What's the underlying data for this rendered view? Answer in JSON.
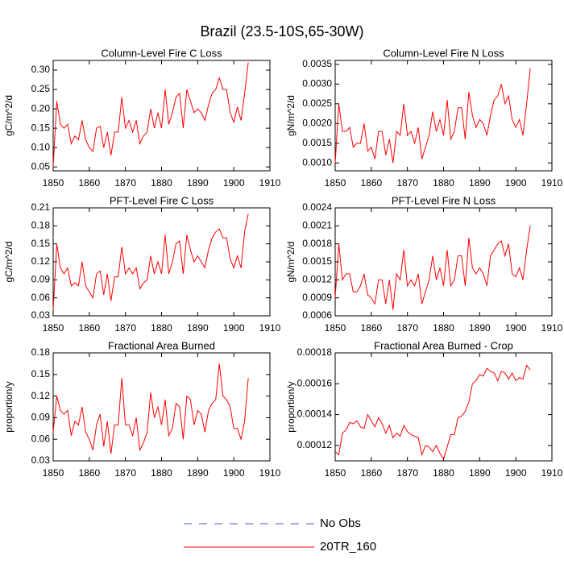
{
  "title": "Brazil (23.5-10S,65-30W)",
  "legend": [
    {
      "name": "No Obs",
      "color": "#4a5ad0",
      "dash": true
    },
    {
      "name": "20TR_160",
      "color": "#ff0000",
      "dash": false
    }
  ],
  "chart_data": [
    {
      "type": "line",
      "title": "Column-Level Fire C Loss",
      "ylabel": "gC/m^2/d",
      "x": [
        1850,
        1851,
        1852,
        1853,
        1854,
        1855,
        1856,
        1857,
        1858,
        1859,
        1860,
        1861,
        1862,
        1863,
        1864,
        1865,
        1866,
        1867,
        1868,
        1869,
        1870,
        1871,
        1872,
        1873,
        1874,
        1875,
        1876,
        1877,
        1878,
        1879,
        1880,
        1881,
        1882,
        1883,
        1884,
        1885,
        1886,
        1887,
        1888,
        1889,
        1890,
        1891,
        1892,
        1893,
        1894,
        1895,
        1896,
        1897,
        1898,
        1899,
        1900,
        1901,
        1902,
        1903,
        1904
      ],
      "series": [
        {
          "color": "#ff0000",
          "values": [
            0.05,
            0.22,
            0.16,
            0.15,
            0.16,
            0.11,
            0.13,
            0.12,
            0.17,
            0.12,
            0.1,
            0.09,
            0.15,
            0.155,
            0.1,
            0.14,
            0.08,
            0.14,
            0.14,
            0.23,
            0.15,
            0.17,
            0.14,
            0.17,
            0.11,
            0.13,
            0.14,
            0.2,
            0.15,
            0.19,
            0.15,
            0.25,
            0.16,
            0.19,
            0.23,
            0.24,
            0.15,
            0.25,
            0.22,
            0.19,
            0.2,
            0.19,
            0.17,
            0.21,
            0.24,
            0.25,
            0.28,
            0.25,
            0.25,
            0.19,
            0.165,
            0.205,
            0.17,
            0.24,
            0.32
          ]
        }
      ],
      "xlim": [
        1850,
        1910
      ],
      "xticks": [
        1850,
        1860,
        1870,
        1880,
        1890,
        1900,
        1910
      ],
      "ylim": [
        0.04,
        0.325
      ],
      "yticks": [
        0.05,
        {
          "value": 0.1,
          "label": "0.10"
        },
        0.15,
        {
          "value": 0.2,
          "label": "0.20"
        },
        0.25,
        {
          "value": 0.3,
          "label": "0.30"
        }
      ]
    },
    {
      "type": "line",
      "title": "Column-Level Fire N Loss",
      "ylabel": "gN/m^2/d",
      "x": [
        1850,
        1851,
        1852,
        1853,
        1854,
        1855,
        1856,
        1857,
        1858,
        1859,
        1860,
        1861,
        1862,
        1863,
        1864,
        1865,
        1866,
        1867,
        1868,
        1869,
        1870,
        1871,
        1872,
        1873,
        1874,
        1875,
        1876,
        1877,
        1878,
        1879,
        1880,
        1881,
        1882,
        1883,
        1884,
        1885,
        1886,
        1887,
        1888,
        1889,
        1890,
        1891,
        1892,
        1893,
        1894,
        1895,
        1896,
        1897,
        1898,
        1899,
        1900,
        1901,
        1902,
        1903,
        1904
      ],
      "series": [
        {
          "color": "#ff0000",
          "values": [
            0.001,
            0.0025,
            0.0018,
            0.0018,
            0.0019,
            0.0014,
            0.0015,
            0.0015,
            0.002,
            0.0013,
            0.0014,
            0.0011,
            0.0018,
            0.0018,
            0.0012,
            0.0016,
            0.001,
            0.0018,
            0.0017,
            0.0025,
            0.0017,
            0.0018,
            0.0015,
            0.0019,
            0.0011,
            0.0014,
            0.0017,
            0.0023,
            0.0018,
            0.0021,
            0.0017,
            0.0026,
            0.0016,
            0.0018,
            0.0024,
            0.0024,
            0.0016,
            0.0028,
            0.0022,
            0.0019,
            0.0021,
            0.002,
            0.0017,
            0.0022,
            0.0026,
            0.0027,
            0.003,
            0.0025,
            0.0027,
            0.0021,
            0.0019,
            0.0021,
            0.0017,
            0.0025,
            0.0034
          ]
        }
      ],
      "xlim": [
        1850,
        1910
      ],
      "xticks": [
        1850,
        1860,
        1870,
        1880,
        1890,
        1900,
        1910
      ],
      "ylim": [
        0.0008,
        0.0036
      ],
      "yticks": [
        {
          "value": 0.001,
          "label": "0.0010"
        },
        0.0015,
        {
          "value": 0.002,
          "label": "0.0020"
        },
        0.0025,
        {
          "value": 0.003,
          "label": "0.0030"
        },
        0.0035
      ]
    },
    {
      "type": "line",
      "title": "PFT-Level Fire C Loss",
      "ylabel": "gC/m^2/d",
      "x": [
        1850,
        1851,
        1852,
        1853,
        1854,
        1855,
        1856,
        1857,
        1858,
        1859,
        1860,
        1861,
        1862,
        1863,
        1864,
        1865,
        1866,
        1867,
        1868,
        1869,
        1870,
        1871,
        1872,
        1873,
        1874,
        1875,
        1876,
        1877,
        1878,
        1879,
        1880,
        1881,
        1882,
        1883,
        1884,
        1885,
        1886,
        1887,
        1888,
        1889,
        1890,
        1891,
        1892,
        1893,
        1894,
        1895,
        1896,
        1897,
        1898,
        1899,
        1900,
        1901,
        1902,
        1903,
        1904
      ],
      "series": [
        {
          "color": "#ff0000",
          "values": [
            0.04,
            0.15,
            0.11,
            0.1,
            0.11,
            0.08,
            0.085,
            0.08,
            0.12,
            0.08,
            0.07,
            0.06,
            0.1,
            0.105,
            0.065,
            0.1,
            0.055,
            0.095,
            0.095,
            0.145,
            0.1,
            0.11,
            0.1,
            0.11,
            0.075,
            0.085,
            0.09,
            0.13,
            0.1,
            0.12,
            0.1,
            0.165,
            0.1,
            0.12,
            0.15,
            0.155,
            0.1,
            0.165,
            0.14,
            0.12,
            0.13,
            0.12,
            0.11,
            0.14,
            0.16,
            0.17,
            0.175,
            0.16,
            0.16,
            0.125,
            0.11,
            0.13,
            0.11,
            0.17,
            0.2
          ]
        }
      ],
      "xlim": [
        1850,
        1910
      ],
      "xticks": [
        1850,
        1860,
        1870,
        1880,
        1890,
        1900,
        1910
      ],
      "ylim": [
        0.03,
        0.21
      ],
      "yticks": [
        0.03,
        0.06,
        0.09,
        0.12,
        0.15,
        0.18,
        0.21
      ]
    },
    {
      "type": "line",
      "title": "PFT-Level Fire N Loss",
      "ylabel": "gN/m^2/d",
      "x": [
        1850,
        1851,
        1852,
        1853,
        1854,
        1855,
        1856,
        1857,
        1858,
        1859,
        1860,
        1861,
        1862,
        1863,
        1864,
        1865,
        1866,
        1867,
        1868,
        1869,
        1870,
        1871,
        1872,
        1873,
        1874,
        1875,
        1876,
        1877,
        1878,
        1879,
        1880,
        1881,
        1882,
        1883,
        1884,
        1885,
        1886,
        1887,
        1888,
        1889,
        1890,
        1891,
        1892,
        1893,
        1894,
        1895,
        1896,
        1897,
        1898,
        1899,
        1900,
        1901,
        1902,
        1903,
        1904
      ],
      "series": [
        {
          "color": "#ff0000",
          "values": [
            0.0009,
            0.0018,
            0.0012,
            0.0013,
            0.0013,
            0.001,
            0.001,
            0.0011,
            0.0013,
            0.00095,
            0.0009,
            0.0008,
            0.0012,
            0.0012,
            0.0008,
            0.0012,
            0.0007,
            0.0013,
            0.0012,
            0.0017,
            0.0011,
            0.0012,
            0.0011,
            0.0013,
            0.0008,
            0.001,
            0.0012,
            0.0016,
            0.0012,
            0.0014,
            0.0011,
            0.0017,
            0.0011,
            0.0012,
            0.0016,
            0.0016,
            0.0011,
            0.0019,
            0.0014,
            0.0013,
            0.0014,
            0.0013,
            0.0011,
            0.0016,
            0.0017,
            0.0018,
            0.00185,
            0.0016,
            0.0018,
            0.0013,
            0.00125,
            0.0014,
            0.0012,
            0.0017,
            0.0021
          ]
        }
      ],
      "xlim": [
        1850,
        1910
      ],
      "xticks": [
        1850,
        1860,
        1870,
        1880,
        1890,
        1900,
        1910
      ],
      "ylim": [
        0.0006,
        0.0024
      ],
      "yticks": [
        0.0006,
        0.0009,
        0.0012,
        0.0015,
        0.0018,
        0.0021,
        0.0024
      ]
    },
    {
      "type": "line",
      "title": "Fractional Area Burned",
      "ylabel": "proportion/y",
      "x": [
        1850,
        1851,
        1852,
        1853,
        1854,
        1855,
        1856,
        1857,
        1858,
        1859,
        1860,
        1861,
        1862,
        1863,
        1864,
        1865,
        1866,
        1867,
        1868,
        1869,
        1870,
        1871,
        1872,
        1873,
        1874,
        1875,
        1876,
        1877,
        1878,
        1879,
        1880,
        1881,
        1882,
        1883,
        1884,
        1885,
        1886,
        1887,
        1888,
        1889,
        1890,
        1891,
        1892,
        1893,
        1894,
        1895,
        1896,
        1897,
        1898,
        1899,
        1900,
        1901,
        1902,
        1903,
        1904
      ],
      "series": [
        {
          "color": "#ff0000",
          "values": [
            0.07,
            0.12,
            0.1,
            0.095,
            0.1,
            0.065,
            0.085,
            0.08,
            0.105,
            0.07,
            0.06,
            0.045,
            0.08,
            0.095,
            0.05,
            0.085,
            0.04,
            0.08,
            0.08,
            0.145,
            0.08,
            0.08,
            0.065,
            0.09,
            0.045,
            0.055,
            0.07,
            0.125,
            0.09,
            0.105,
            0.08,
            0.115,
            0.065,
            0.075,
            0.11,
            0.105,
            0.06,
            0.12,
            0.115,
            0.08,
            0.1,
            0.095,
            0.07,
            0.1,
            0.11,
            0.115,
            0.165,
            0.12,
            0.115,
            0.105,
            0.075,
            0.075,
            0.06,
            0.085,
            0.145
          ]
        }
      ],
      "xlim": [
        1850,
        1910
      ],
      "xticks": [
        1850,
        1860,
        1870,
        1880,
        1890,
        1900,
        1910
      ],
      "ylim": [
        0.03,
        0.18
      ],
      "yticks": [
        0.03,
        0.06,
        0.09,
        0.12,
        0.15,
        0.18
      ]
    },
    {
      "type": "line",
      "title": "Fractional Area Burned - Crop",
      "ylabel": "proportion/y",
      "x": [
        1850,
        1851,
        1852,
        1853,
        1854,
        1855,
        1856,
        1857,
        1858,
        1859,
        1860,
        1861,
        1862,
        1863,
        1864,
        1865,
        1866,
        1867,
        1868,
        1869,
        1870,
        1871,
        1872,
        1873,
        1874,
        1875,
        1876,
        1877,
        1878,
        1879,
        1880,
        1881,
        1882,
        1883,
        1884,
        1885,
        1886,
        1887,
        1888,
        1889,
        1890,
        1891,
        1892,
        1893,
        1894,
        1895,
        1896,
        1897,
        1898,
        1899,
        1900,
        1901,
        1902,
        1903,
        1904
      ],
      "series": [
        {
          "color": "#ff0000",
          "values": [
            0.000116,
            0.000114,
            0.000128,
            0.00013,
            0.000135,
            0.000134,
            0.000136,
            0.000132,
            0.000131,
            0.00014,
            0.000136,
            0.000132,
            0.000138,
            0.000134,
            0.000128,
            0.000133,
            0.000125,
            0.000128,
            0.000126,
            0.000133,
            0.000129,
            0.000127,
            0.000126,
            0.000125,
            0.000114,
            0.00012,
            0.000119,
            0.000116,
            0.00012,
            0.000115,
            0.000111,
            0.000119,
            0.000127,
            0.000127,
            0.000138,
            0.000139,
            0.000142,
            0.000148,
            0.00016,
            0.000162,
            0.000166,
            0.000165,
            0.00017,
            0.000168,
            0.000167,
            0.000162,
            0.000168,
            0.000167,
            0.000163,
            0.000167,
            0.000162,
            0.000164,
            0.000163,
            0.000172,
            0.000169
          ]
        }
      ],
      "xlim": [
        1850,
        1910
      ],
      "xticks": [
        1850,
        1860,
        1870,
        1880,
        1890,
        1900,
        1910
      ],
      "ylim": [
        0.00011,
        0.00018
      ],
      "yticks": [
        0.00012,
        0.00014,
        0.00016,
        0.00018
      ]
    }
  ]
}
